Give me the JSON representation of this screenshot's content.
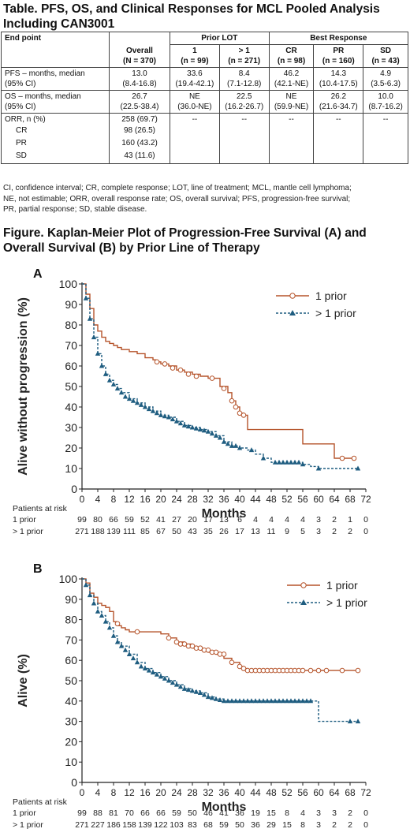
{
  "table": {
    "title_line1": "Table. PFS, OS, and Clinical Responses for MCL Pooled Analysis",
    "title_line2": "Including CAN3001",
    "header": {
      "endpoint": "End point",
      "prior_lot": "Prior LOT",
      "best_response": "Best Response",
      "overall": "Overall",
      "overall_n": "(N = 370)",
      "lot1": "1",
      "lot1_n": "(n = 99)",
      "lotgt1": "> 1",
      "lotgt1_n": "(n = 271)",
      "cr": "CR",
      "cr_n": "(n = 98)",
      "pr": "PR",
      "pr_n": "(n = 160)",
      "sd": "SD",
      "sd_n": "(n = 43)"
    },
    "pfs": {
      "label1": "PFS – months, median",
      "label2": "(95% CI)",
      "values": [
        "13.0",
        "33.6",
        "8.4",
        "46.2",
        "14.3",
        "4.9"
      ],
      "cis": [
        "(8.4-16.8)",
        "(19.4-42.1)",
        "(7.1-12.8)",
        "(42.1-NE)",
        "(10.4-17.5)",
        "(3.5-6.3)"
      ]
    },
    "os": {
      "label1": "OS – months, median",
      "label2": "(95% CI)",
      "values": [
        "26.7",
        "NE",
        "22.5",
        "NE",
        "26.2",
        "10.0"
      ],
      "cis": [
        "(22.5-38.4)",
        "(36.0-NE)",
        "(16.2-26.7)",
        "(59.9-NE)",
        "(21.6-34.7)",
        "(8.7-16.2)"
      ]
    },
    "orr": {
      "label": "ORR, n (%)",
      "overall": "258 (69.7)",
      "dash": "--",
      "sub": [
        {
          "label": "CR",
          "value": "98 (26.5)"
        },
        {
          "label": "PR",
          "value": "160 (43.2)"
        },
        {
          "label": "SD",
          "value": "43 (11.6)"
        }
      ]
    },
    "footnote_lines": [
      "CI, confidence interval; CR, complete response; LOT, line of treatment; MCL, mantle cell lymphoma;",
      "NE, not estimable; ORR, overall response rate; OS, overall survival; PFS, progression-free survival;",
      "PR, partial response; SD, stable disease."
    ]
  },
  "figure": {
    "title_line1": "Figure. Kaplan-Meier Plot of Progression-Free Survival (A) and",
    "title_line2": "Overall Survival (B) by Prior Line of Therapy"
  },
  "colors": {
    "one_prior": "#b5532a",
    "gt1_prior": "#1f5d80",
    "axis": "#222222"
  },
  "chart_data": [
    {
      "type": "line",
      "panel": "A",
      "ylabel": "Alive without progression (%)",
      "xlabel": "Months",
      "xlim": [
        0,
        72
      ],
      "ylim": [
        0,
        100
      ],
      "xticks": [
        0,
        4,
        8,
        12,
        16,
        20,
        24,
        28,
        32,
        36,
        40,
        44,
        48,
        52,
        56,
        60,
        64,
        68,
        72
      ],
      "yticks": [
        0,
        10,
        20,
        30,
        40,
        50,
        60,
        70,
        80,
        90,
        100
      ],
      "grid": false,
      "legend_position": "top-right",
      "series": [
        {
          "name": "1 prior",
          "style": "solid",
          "marker": "open-circle",
          "color": "#b5532a",
          "x": [
            0,
            1,
            2,
            3,
            4,
            5,
            6,
            7,
            8,
            9,
            10,
            11,
            12,
            14,
            16,
            18,
            19,
            20,
            22,
            24,
            26,
            28,
            30,
            32,
            33,
            35,
            37,
            38,
            39,
            40,
            41,
            42,
            45,
            50,
            55,
            56,
            60,
            64,
            66,
            69
          ],
          "y": [
            100,
            95,
            88,
            80,
            77,
            74,
            72,
            71,
            70,
            69,
            68,
            68,
            67,
            66,
            64,
            63,
            62,
            61,
            60,
            58,
            57,
            56,
            55,
            54,
            54,
            50,
            47,
            43,
            40,
            37,
            36,
            29,
            29,
            29,
            29,
            22,
            22,
            15,
            15,
            15
          ],
          "censors_x": [
            19,
            21,
            23,
            25,
            27,
            29,
            33,
            36,
            38,
            39,
            40,
            41,
            66,
            69
          ],
          "censors_y": [
            62,
            61,
            59,
            58,
            56,
            55,
            54,
            49,
            43,
            40,
            37,
            36,
            15,
            15
          ]
        },
        {
          "name": "> 1 prior",
          "style": "dashed",
          "marker": "filled-triangle",
          "color": "#1f5d80",
          "x": [
            0,
            1,
            2,
            3,
            4,
            5,
            6,
            7,
            8,
            9,
            10,
            12,
            14,
            16,
            18,
            20,
            22,
            24,
            26,
            28,
            30,
            32,
            34,
            36,
            38,
            40,
            42,
            44,
            46,
            48,
            52,
            56,
            58,
            60,
            65,
            70
          ],
          "y": [
            100,
            93,
            83,
            74,
            66,
            60,
            56,
            53,
            51,
            49,
            47,
            44,
            42,
            40,
            38,
            36,
            35,
            33,
            31,
            30,
            29,
            28,
            26,
            23,
            21,
            20,
            19,
            17,
            15,
            13,
            13,
            12,
            11,
            10,
            10,
            10
          ],
          "censors_x": [
            1,
            2,
            3,
            4,
            5,
            6,
            7,
            8,
            9,
            10,
            11,
            12,
            13,
            14,
            15,
            16,
            17,
            18,
            19,
            20,
            21,
            22,
            23,
            24,
            25,
            26,
            27,
            28,
            29,
            30,
            31,
            32,
            33,
            34,
            35,
            36,
            37,
            38,
            39,
            40,
            43,
            46,
            49,
            50,
            51,
            52,
            53,
            54,
            55,
            56,
            60,
            70
          ],
          "censors_y": [
            93,
            83,
            74,
            66,
            60,
            56,
            53,
            51,
            49,
            47,
            45,
            44,
            43,
            42,
            41,
            40,
            39,
            38,
            37,
            36,
            35.5,
            35,
            34,
            33,
            32,
            31,
            30.5,
            30,
            29.5,
            29,
            28.5,
            28,
            27,
            26,
            25,
            23,
            22,
            21,
            21,
            20,
            19,
            15,
            13,
            13,
            13,
            13,
            13,
            13,
            13,
            12,
            10,
            10
          ]
        }
      ],
      "risk_table": {
        "header": "Patients at risk",
        "rows": [
          {
            "label": "1 prior",
            "values": [
              "99",
              "80",
              "66",
              "59",
              "52",
              "41",
              "27",
              "20",
              "17",
              "13",
              "6",
              "4",
              "4",
              "4",
              "4",
              "3",
              "2",
              "1",
              "0"
            ]
          },
          {
            "label": "> 1 prior",
            "values": [
              "271",
              "188",
              "139",
              "111",
              "85",
              "67",
              "50",
              "43",
              "35",
              "26",
              "17",
              "13",
              "11",
              "9",
              "5",
              "3",
              "2",
              "2",
              "0"
            ]
          }
        ]
      }
    },
    {
      "type": "line",
      "panel": "B",
      "ylabel": "Alive (%)",
      "xlabel": "Months",
      "xlim": [
        0,
        72
      ],
      "ylim": [
        0,
        100
      ],
      "xticks": [
        0,
        4,
        8,
        12,
        16,
        20,
        24,
        28,
        32,
        36,
        40,
        44,
        48,
        52,
        56,
        60,
        64,
        68,
        72
      ],
      "yticks": [
        0,
        10,
        20,
        30,
        40,
        50,
        60,
        70,
        80,
        90,
        100
      ],
      "grid": false,
      "legend_position": "top-right",
      "series": [
        {
          "name": "1 prior",
          "style": "solid",
          "marker": "open-circle",
          "color": "#b5532a",
          "x": [
            0,
            1,
            2,
            3,
            4,
            5,
            6,
            7,
            8,
            9,
            10,
            11,
            12,
            13,
            15,
            20,
            22,
            24,
            26,
            28,
            30,
            32,
            34,
            36,
            38,
            40,
            41,
            42,
            48,
            55,
            60,
            66,
            70
          ],
          "y": [
            100,
            98,
            93,
            91,
            88,
            87,
            86,
            84,
            79,
            77,
            76,
            75,
            74,
            74,
            74,
            73,
            71,
            69,
            68,
            66,
            65,
            64,
            63,
            61,
            59,
            57,
            56,
            55,
            55,
            55,
            55,
            55,
            55
          ],
          "censors_x": [
            9,
            14,
            22,
            24,
            25,
            26,
            27,
            28,
            29,
            30,
            31,
            32,
            33,
            34,
            35,
            36,
            38,
            40,
            41,
            42,
            43,
            44,
            45,
            46,
            47,
            48,
            49,
            50,
            51,
            52,
            53,
            54,
            55,
            56,
            58,
            60,
            62,
            66,
            70
          ],
          "censors_y": [
            78,
            74,
            71,
            69,
            68,
            68,
            67,
            67,
            66,
            66,
            65,
            65,
            64,
            64,
            63,
            63,
            59,
            57,
            56,
            55,
            55,
            55,
            55,
            55,
            55,
            55,
            55,
            55,
            55,
            55,
            55,
            55,
            55,
            55,
            55,
            55,
            55,
            55,
            55
          ]
        },
        {
          "name": "> 1 prior",
          "style": "dashed",
          "marker": "filled-triangle",
          "color": "#1f5d80",
          "x": [
            0,
            1,
            2,
            3,
            4,
            5,
            6,
            7,
            8,
            9,
            10,
            12,
            14,
            16,
            18,
            20,
            22,
            24,
            26,
            28,
            30,
            32,
            34,
            36,
            38,
            40,
            45,
            50,
            55,
            59,
            60,
            62,
            65,
            70
          ],
          "y": [
            100,
            97,
            92,
            88,
            84,
            82,
            79,
            76,
            72,
            69,
            67,
            63,
            59,
            56,
            54,
            52,
            50,
            48,
            46,
            45,
            44,
            42,
            41,
            40,
            40,
            40,
            40,
            40,
            40,
            40,
            30,
            30,
            30,
            30
          ],
          "censors_x": [
            1,
            2,
            3,
            4,
            5,
            6,
            7,
            8,
            9,
            10,
            11,
            12,
            13,
            14,
            15,
            16,
            17,
            18,
            19,
            20,
            21,
            22,
            23,
            24,
            25,
            26,
            27,
            28,
            29,
            30,
            31,
            32,
            33,
            34,
            35,
            36,
            37,
            38,
            39,
            40,
            41,
            42,
            43,
            44,
            45,
            46,
            47,
            48,
            49,
            50,
            51,
            52,
            53,
            54,
            55,
            56,
            57,
            58,
            68,
            70
          ],
          "censors_y": [
            97,
            92,
            88,
            84,
            82,
            79,
            76,
            72,
            69,
            67,
            65,
            63,
            61,
            59,
            57,
            56,
            55,
            54,
            53,
            52,
            51,
            50,
            49,
            48,
            47,
            46,
            45.5,
            45,
            44.5,
            44,
            43,
            42,
            41.5,
            41,
            40.5,
            40,
            40,
            40,
            40,
            40,
            40,
            40,
            40,
            40,
            40,
            40,
            40,
            40,
            40,
            40,
            40,
            40,
            40,
            40,
            40,
            40,
            40,
            40,
            30,
            30
          ]
        }
      ],
      "risk_table": {
        "header": "Patients at risk",
        "rows": [
          {
            "label": "1 prior",
            "values": [
              "99",
              "88",
              "81",
              "70",
              "66",
              "66",
              "59",
              "50",
              "46",
              "41",
              "36",
              "19",
              "15",
              "8",
              "4",
              "3",
              "3",
              "2",
              "0"
            ]
          },
          {
            "label": "> 1 prior",
            "values": [
              "271",
              "227",
              "186",
              "158",
              "139",
              "122",
              "103",
              "83",
              "68",
              "59",
              "50",
              "36",
              "29",
              "15",
              "8",
              "3",
              "2",
              "2",
              "0"
            ]
          }
        ]
      }
    }
  ]
}
